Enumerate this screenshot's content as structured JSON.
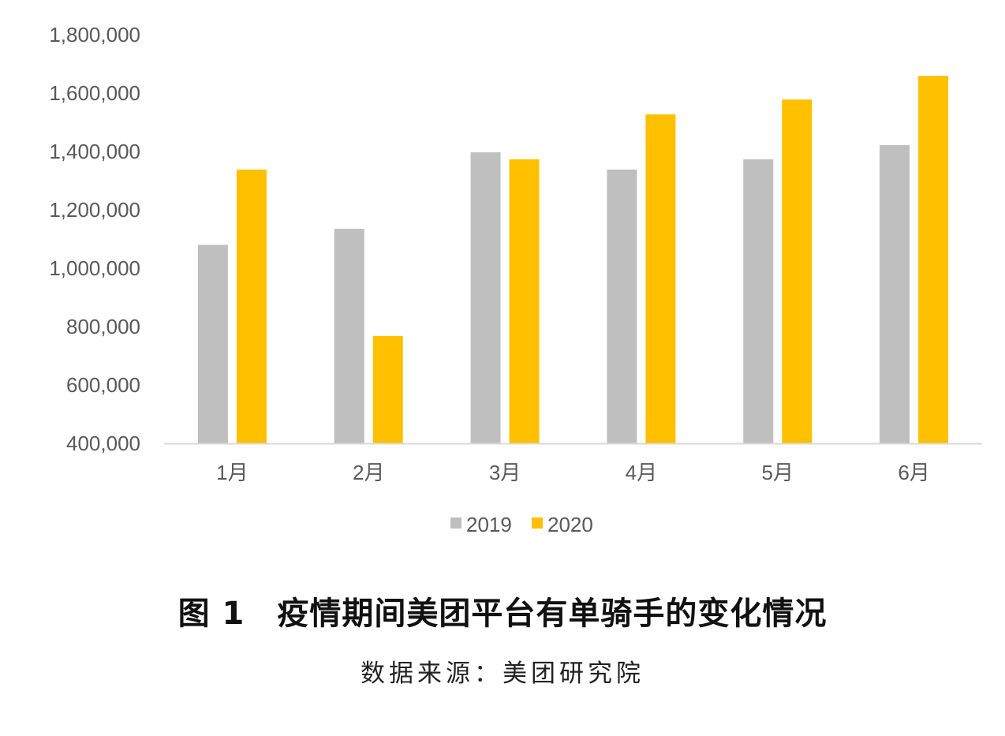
{
  "chart_data": {
    "type": "bar",
    "title": "图 1　疫情期间美团平台有单骑手的变化情况",
    "subtitle": "数据来源：美团研究院",
    "categories": [
      "1月",
      "2月",
      "3月",
      "4月",
      "5月",
      "6月"
    ],
    "series": [
      {
        "name": "2019",
        "color": "#bfbfbf",
        "values": [
          1080000,
          1135000,
          1397000,
          1338000,
          1373000,
          1422000
        ]
      },
      {
        "name": "2020",
        "color": "#ffc000",
        "values": [
          1338000,
          768000,
          1373000,
          1527000,
          1578000,
          1659000
        ]
      }
    ],
    "ylim": [
      400000,
      1800000
    ],
    "yticks": [
      "400,000",
      "600,000",
      "800,000",
      "1,000,000",
      "1,200,000",
      "1,400,000",
      "1,600,000",
      "1,800,000"
    ],
    "xlabel": "",
    "ylabel": "",
    "grid": false,
    "legend_position": "bottom"
  }
}
